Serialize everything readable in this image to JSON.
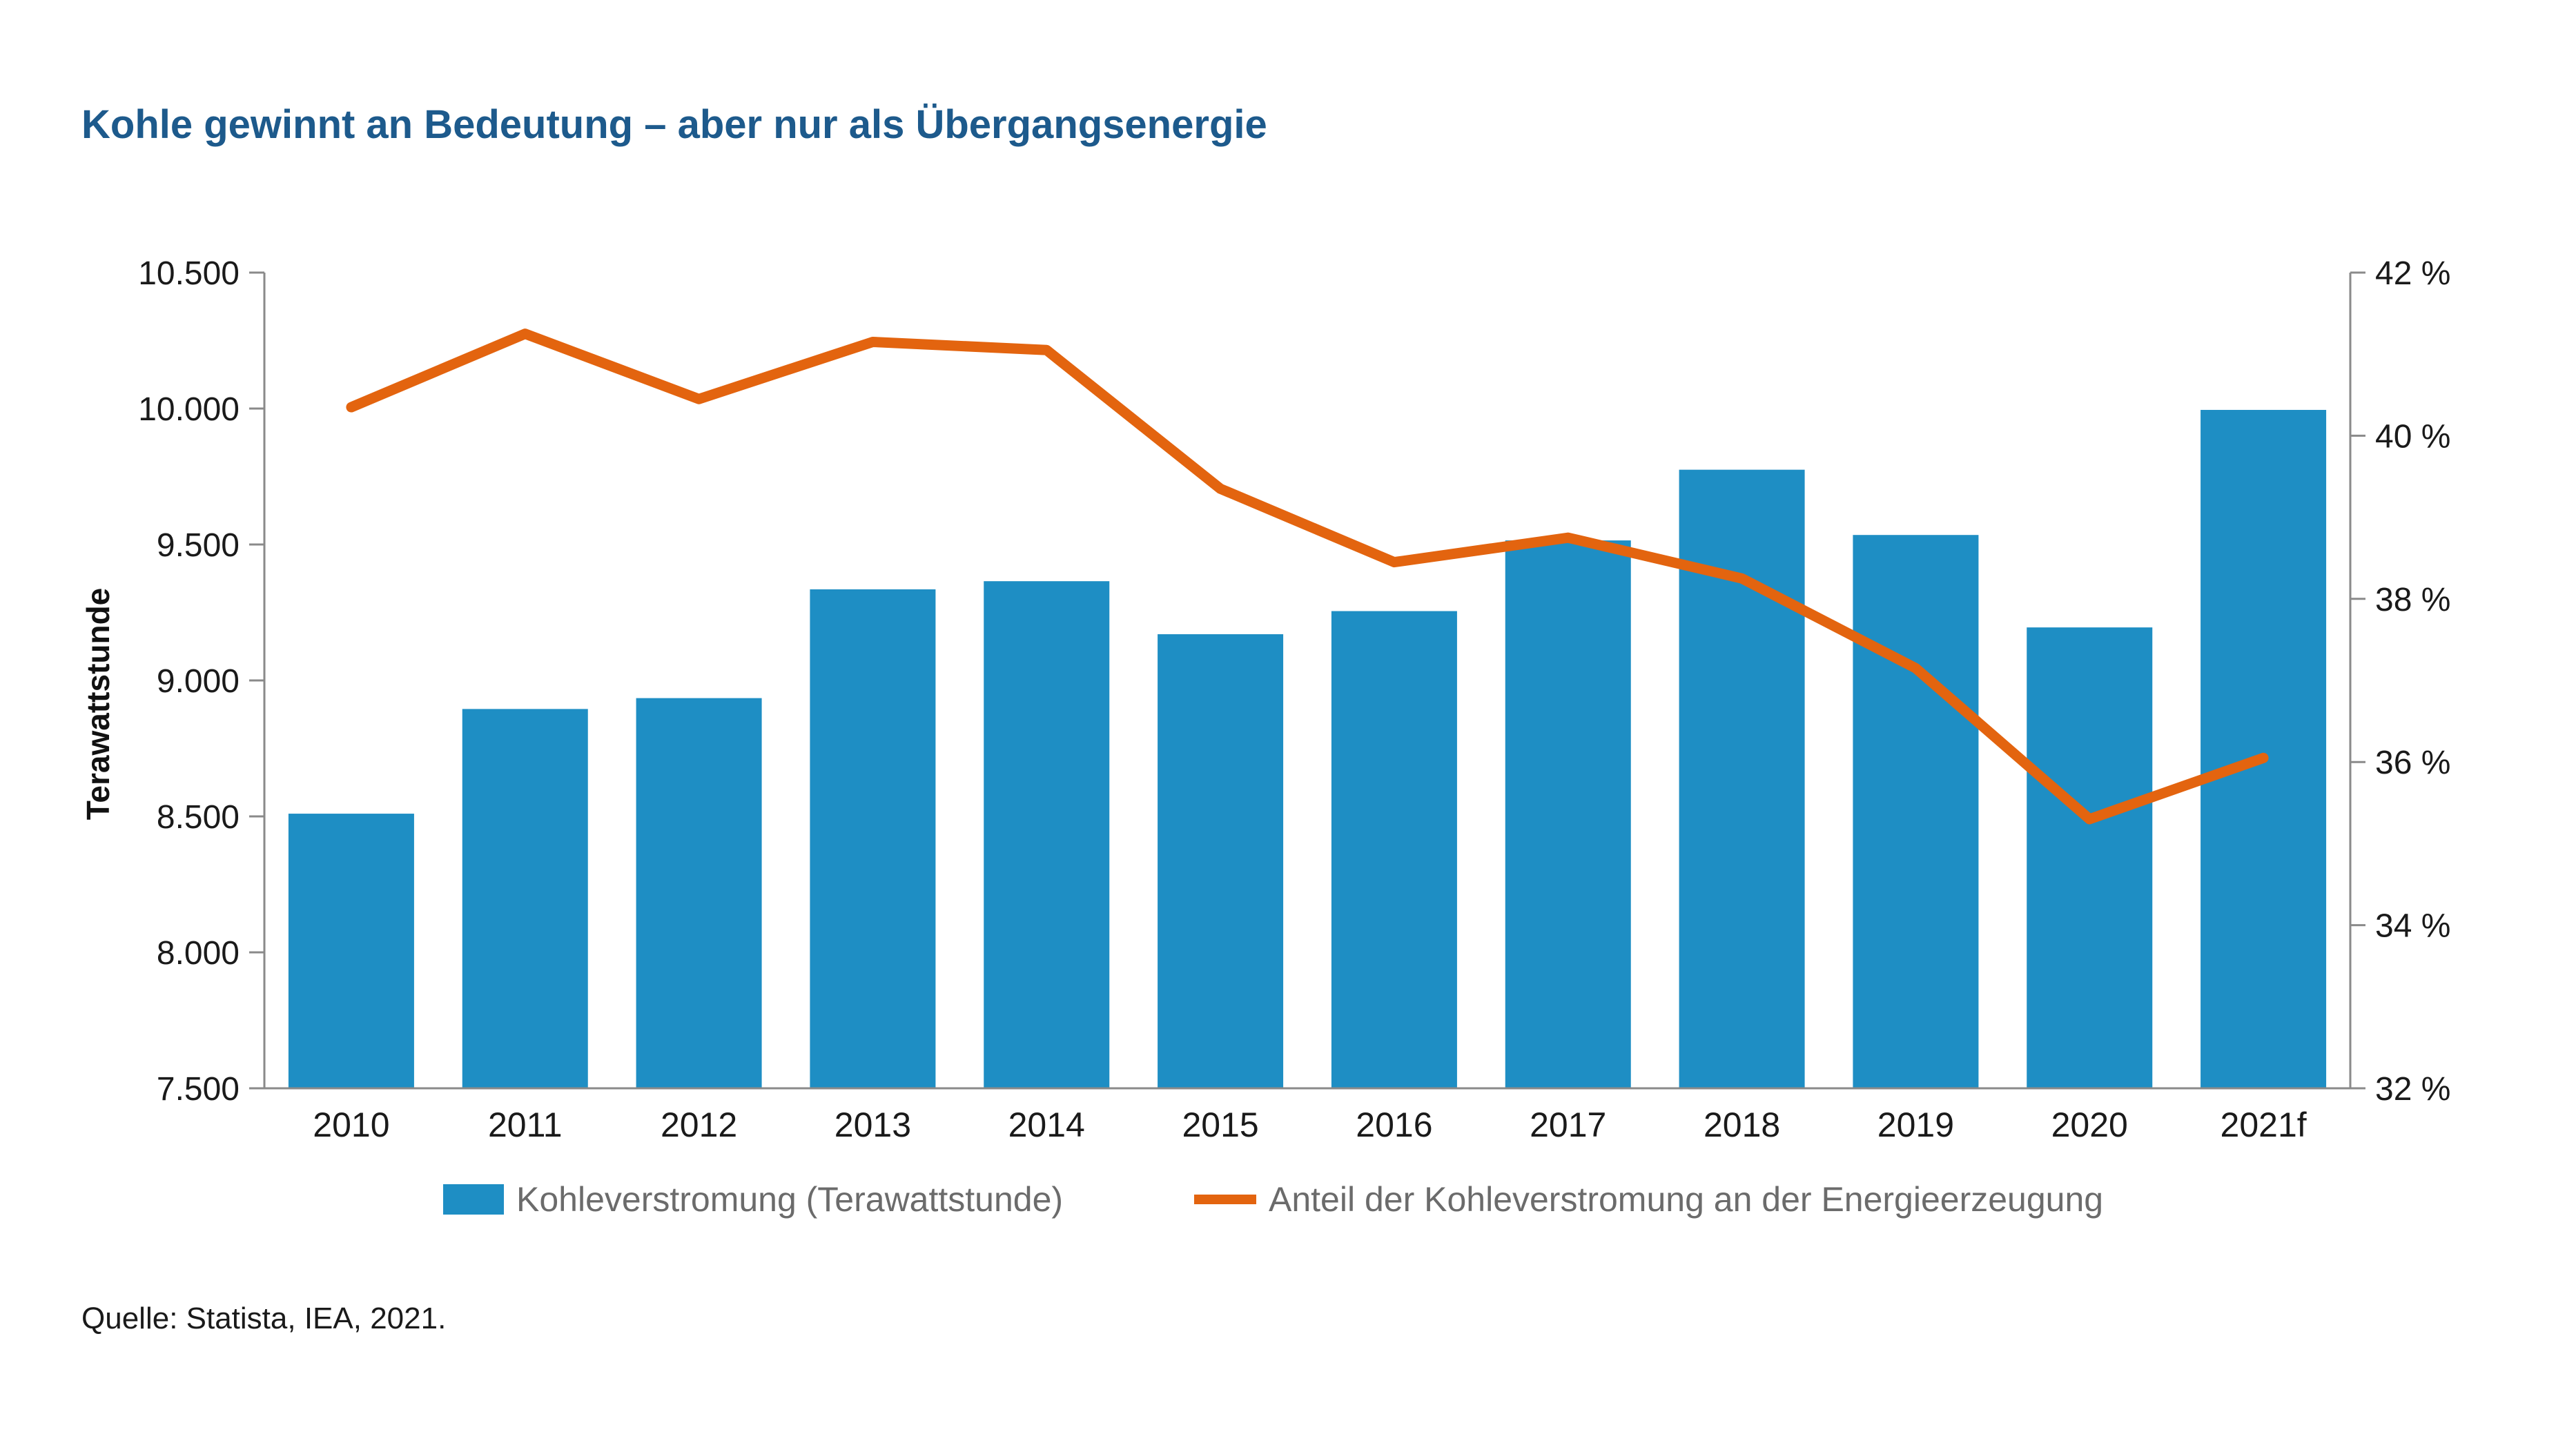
{
  "chart_data": {
    "type": "bar",
    "title": "Kohle gewinnt an Bedeutung – aber nur als Übergangsenergie",
    "ylabel": "Terawattstunde",
    "categories": [
      "2010",
      "2011",
      "2012",
      "2013",
      "2014",
      "2015",
      "2016",
      "2017",
      "2018",
      "2019",
      "2020",
      "2021f"
    ],
    "y_ticks": [
      "7.500",
      "8.000",
      "8.500",
      "9.000",
      "9.500",
      "10.000",
      "10.500"
    ],
    "ylim": [
      7500,
      10500
    ],
    "y2_ticks": [
      "32 %",
      "34 %",
      "36 %",
      "38 %",
      "40 %",
      "42 %"
    ],
    "y2lim": [
      32,
      42
    ],
    "grid": false,
    "legend_position": "bottom",
    "series": [
      {
        "name": "Kohleverstromung (Terawattstunde)",
        "type": "bar",
        "axis": "left",
        "color": "#1e8ec4",
        "values": [
          8510,
          8895,
          8935,
          9335,
          9365,
          9170,
          9255,
          9515,
          9775,
          9535,
          9195,
          9995
        ]
      },
      {
        "name": "Anteil der Kohleverstromung an der Energieerzeugung",
        "type": "line",
        "axis": "right",
        "color": "#e3640f",
        "values": [
          40.35,
          41.25,
          40.45,
          41.15,
          41.05,
          39.35,
          38.45,
          38.75,
          38.25,
          37.15,
          35.3,
          36.05
        ]
      }
    ],
    "source": "Quelle: Statista, IEA, 2021."
  }
}
